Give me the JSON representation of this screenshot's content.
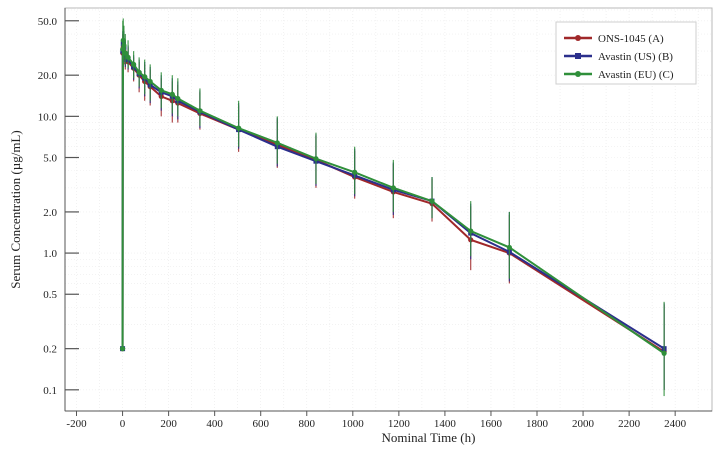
{
  "chart_data": {
    "type": "line",
    "title": "",
    "xlabel": "Nominal Time (h)",
    "ylabel": "Serum Concentration (µg/mL)",
    "xlim": [
      -250,
      2560
    ],
    "ylim": [
      0.07,
      62
    ],
    "yscale": "log",
    "x_ticks": [
      -200,
      0,
      200,
      400,
      600,
      800,
      1000,
      1200,
      1400,
      1600,
      1800,
      2000,
      2200,
      2400
    ],
    "y_ticks": [
      {
        "value": 50,
        "label": "50.0"
      },
      {
        "value": 20,
        "label": "20.0"
      },
      {
        "value": 10,
        "label": "10.0"
      },
      {
        "value": 5,
        "label": "5.0"
      },
      {
        "value": 2,
        "label": "2.0"
      },
      {
        "value": 1,
        "label": "1.0"
      },
      {
        "value": 0.5,
        "label": "0.5"
      },
      {
        "value": 0.2,
        "label": "0.2"
      },
      {
        "value": 0.1,
        "label": "0.1"
      }
    ],
    "grid": true,
    "legend_position": "top-right",
    "series": [
      {
        "name": "ONS-1045 (A)",
        "color": "#a0282a",
        "x": [
          0,
          1,
          3,
          6,
          12,
          24,
          48,
          72,
          96,
          120,
          168,
          216,
          240,
          336,
          504,
          672,
          840,
          1008,
          1176,
          1344,
          1512,
          1680,
          2352
        ],
        "y": [
          0.2,
          29,
          32,
          30,
          27,
          25,
          22.5,
          20,
          18,
          16.5,
          14,
          13,
          12.5,
          10.5,
          8,
          6.2,
          4.8,
          3.6,
          2.8,
          2.3,
          1.25,
          1.0,
          0.19
        ],
        "err_low": [
          0.2,
          24,
          26,
          24,
          22,
          21,
          18,
          15,
          13,
          12,
          10,
          9,
          9,
          8,
          5.5,
          4.2,
          3.0,
          2.5,
          1.8,
          1.7,
          0.75,
          0.6,
          0.1
        ],
        "err_high": [
          0.2,
          40,
          44,
          40,
          35,
          32,
          27,
          25,
          24,
          22,
          19,
          18,
          17,
          15,
          12,
          9.5,
          7.2,
          5.6,
          4.5,
          3.5,
          2.2,
          1.9,
          0.42
        ]
      },
      {
        "name": "Avastin (US) (B)",
        "color": "#2b2f8c",
        "x": [
          0,
          1,
          3,
          6,
          12,
          24,
          48,
          72,
          96,
          120,
          168,
          216,
          240,
          336,
          504,
          672,
          840,
          1008,
          1176,
          1344,
          1512,
          1680,
          2352
        ],
        "y": [
          0.2,
          30,
          34,
          32,
          28,
          26,
          23,
          20.5,
          19,
          17,
          15,
          14,
          13,
          10.8,
          8,
          6.0,
          4.7,
          3.7,
          2.9,
          2.4,
          1.4,
          1.02,
          0.2
        ],
        "err_low": [
          0.2,
          25,
          27,
          25,
          23,
          22,
          18.5,
          16,
          14,
          12.5,
          11,
          10,
          9.5,
          8.2,
          5.8,
          4.3,
          3.1,
          2.6,
          1.9,
          1.8,
          0.9,
          0.62,
          0.1
        ],
        "err_high": [
          0.2,
          42,
          46,
          42,
          36,
          33,
          28,
          26,
          25,
          23,
          20,
          19,
          18,
          15.5,
          12.5,
          9.8,
          7.4,
          5.8,
          4.6,
          3.6,
          2.3,
          2.0,
          0.43
        ]
      },
      {
        "name": "Avastin (EU) (C)",
        "color": "#2f8f3a",
        "x": [
          0,
          1,
          3,
          6,
          12,
          24,
          48,
          72,
          96,
          120,
          168,
          216,
          240,
          336,
          504,
          672,
          840,
          1008,
          1176,
          1344,
          1512,
          1680,
          2352
        ],
        "y": [
          0.2,
          31,
          36,
          33,
          29,
          27,
          24,
          21,
          19.5,
          18,
          15.5,
          14.5,
          13.5,
          11,
          8.2,
          6.4,
          4.9,
          3.9,
          3.0,
          2.4,
          1.45,
          1.1,
          0.185
        ],
        "err_low": [
          0.2,
          17,
          17,
          26,
          24,
          22.5,
          19,
          16.5,
          14.5,
          13,
          11.5,
          10.5,
          10,
          8.5,
          6.0,
          4.5,
          3.2,
          2.7,
          2.0,
          1.8,
          0.95,
          0.65,
          0.09
        ],
        "err_high": [
          0.2,
          50,
          52,
          46,
          40,
          36,
          30,
          27,
          26,
          24,
          21,
          20,
          19,
          16,
          13,
          10,
          7.6,
          6.0,
          4.8,
          3.6,
          2.4,
          2.0,
          0.44
        ]
      }
    ]
  }
}
